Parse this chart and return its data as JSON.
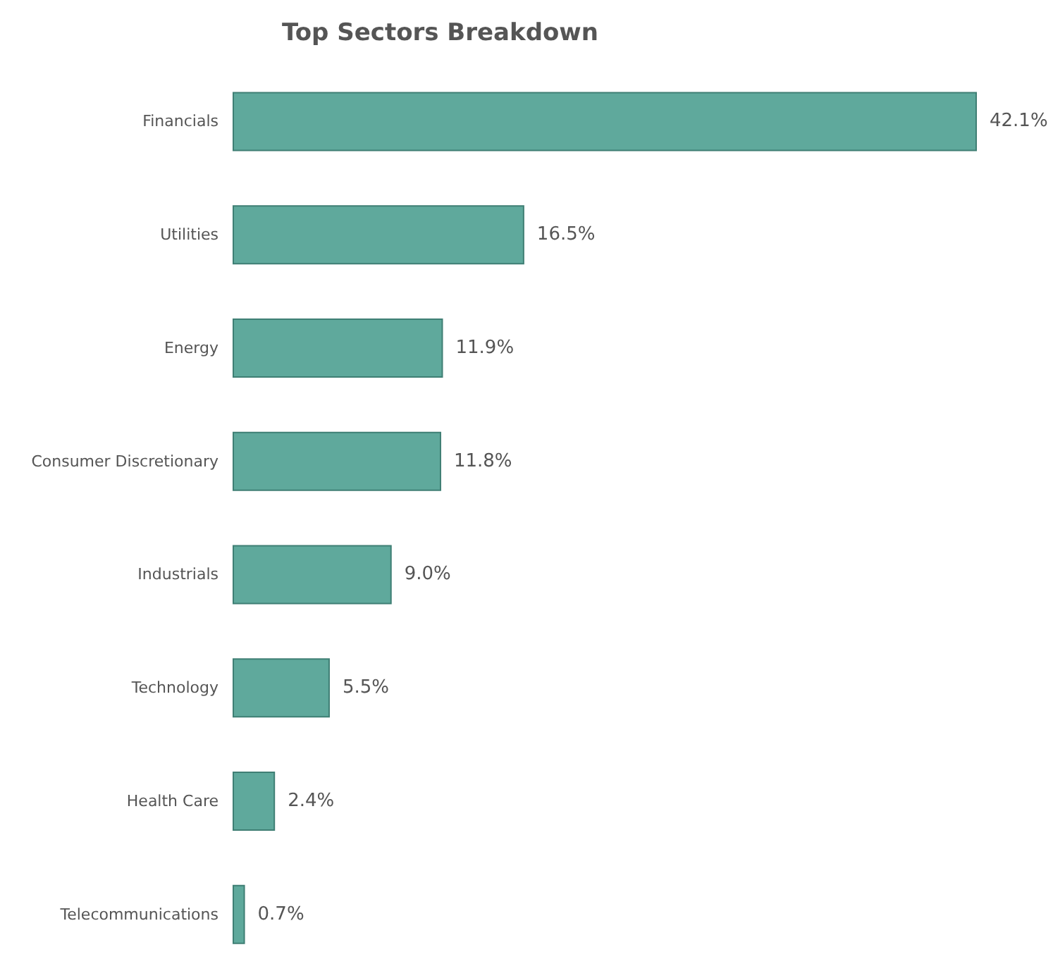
{
  "chart_data": {
    "type": "bar",
    "orientation": "horizontal",
    "title": "Top Sectors Breakdown",
    "categories": [
      "Financials",
      "Utilities",
      "Energy",
      "Consumer Discretionary",
      "Industrials",
      "Technology",
      "Health Care",
      "Telecommunications"
    ],
    "values": [
      42.1,
      16.5,
      11.9,
      11.8,
      9.0,
      5.5,
      2.4,
      0.7
    ],
    "value_labels": [
      "42.1%",
      "16.5%",
      "11.9%",
      "11.8%",
      "9.0%",
      "5.5%",
      "2.4%",
      "0.7%"
    ],
    "color": "#5fa99c"
  }
}
